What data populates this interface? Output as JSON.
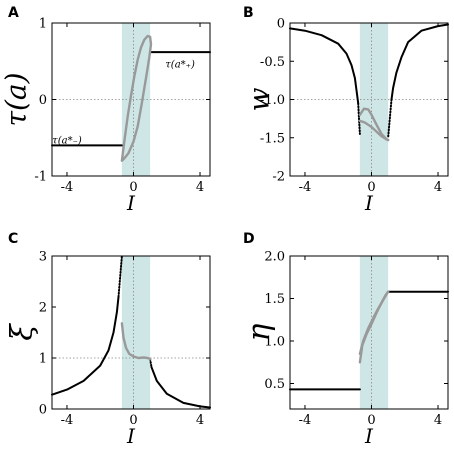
{
  "colors": {
    "shade": "#cfe6e7",
    "black_series": "#000000",
    "gray_series": "#999999",
    "gridline": "#888888"
  },
  "chart_data": [
    {
      "panel": "A",
      "type": "line",
      "xlabel": "I",
      "ylabel": "τ(a)",
      "xlim": [
        -4.9,
        4.6
      ],
      "ylim": [
        -1,
        1
      ],
      "xticks": [
        -4,
        0,
        4
      ],
      "xtick_labels": [
        "-4",
        "0",
        "4"
      ],
      "yticks": [
        -1,
        0,
        1
      ],
      "ytick_labels": [
        "-1",
        "0",
        "1"
      ],
      "shade_x": [
        -0.7,
        1.0
      ],
      "grid": "dotted lines at x=0 and y=0",
      "annotations": [
        {
          "text": "τ(a*₊)",
          "x": 2.8,
          "y": 0.47
        },
        {
          "text": "τ(a*₋)",
          "x": -4.0,
          "y": -0.52
        }
      ],
      "series": [
        {
          "color": "black",
          "style": "solid",
          "points": [
            [
              -4.9,
              -0.6
            ],
            [
              -0.7,
              -0.6
            ]
          ]
        },
        {
          "color": "black",
          "style": "solid",
          "points": [
            [
              1.0,
              0.62
            ],
            [
              4.6,
              0.62
            ]
          ]
        },
        {
          "color": "gray",
          "style": "solid",
          "points": [
            [
              -0.7,
              -0.8
            ],
            [
              -0.55,
              -0.55
            ],
            [
              -0.35,
              -0.22
            ],
            [
              -0.15,
              0.05
            ],
            [
              0.05,
              0.3
            ],
            [
              0.25,
              0.52
            ],
            [
              0.45,
              0.68
            ],
            [
              0.65,
              0.78
            ],
            [
              0.85,
              0.83
            ],
            [
              1.0,
              0.82
            ],
            [
              1.05,
              0.72
            ],
            [
              0.95,
              0.55
            ],
            [
              0.75,
              0.28
            ],
            [
              0.5,
              -0.05
            ],
            [
              0.25,
              -0.35
            ],
            [
              0.0,
              -0.55
            ],
            [
              -0.3,
              -0.7
            ],
            [
              -0.55,
              -0.77
            ],
            [
              -0.7,
              -0.8
            ]
          ]
        }
      ]
    },
    {
      "panel": "B",
      "type": "line",
      "xlabel": "I",
      "ylabel": "w",
      "xlim": [
        -4.9,
        4.6
      ],
      "ylim": [
        -2,
        0
      ],
      "xticks": [
        -4,
        0,
        4
      ],
      "xtick_labels": [
        "-4",
        "0",
        "4"
      ],
      "yticks": [
        0,
        -0.5,
        -1,
        -1.5,
        -2
      ],
      "ytick_labels": [
        "0",
        "-0.5",
        "-1.0",
        "-1.5",
        "-2"
      ],
      "shade_x": [
        -0.7,
        1.0
      ],
      "grid": "dotted lines at x=0 and y=-1",
      "series": [
        {
          "color": "black",
          "style": "solid",
          "points": [
            [
              -4.9,
              -0.07
            ],
            [
              -4.0,
              -0.1
            ],
            [
              -3.0,
              -0.16
            ],
            [
              -2.0,
              -0.27
            ],
            [
              -1.5,
              -0.4
            ],
            [
              -1.2,
              -0.55
            ],
            [
              -1.0,
              -0.72
            ],
            [
              -0.9,
              -0.88
            ],
            [
              -0.8,
              -1.05
            ]
          ]
        },
        {
          "color": "black",
          "style": "dotted",
          "points": [
            [
              -0.8,
              -1.05
            ],
            [
              -0.75,
              -1.25
            ],
            [
              -0.7,
              -1.45
            ]
          ]
        },
        {
          "color": "black",
          "style": "solid",
          "points": [
            [
              4.6,
              -0.02
            ],
            [
              4.0,
              -0.04
            ],
            [
              3.0,
              -0.1
            ],
            [
              2.2,
              -0.25
            ],
            [
              1.8,
              -0.45
            ],
            [
              1.5,
              -0.65
            ],
            [
              1.3,
              -0.85
            ],
            [
              1.2,
              -1.0
            ]
          ]
        },
        {
          "color": "black",
          "style": "dotted",
          "points": [
            [
              1.2,
              -1.0
            ],
            [
              1.1,
              -1.25
            ],
            [
              1.0,
              -1.5
            ]
          ]
        },
        {
          "color": "gray",
          "style": "solid",
          "points": [
            [
              -0.7,
              -1.28
            ],
            [
              -0.4,
              -1.3
            ],
            [
              -0.2,
              -1.33
            ],
            [
              0.0,
              -1.36
            ],
            [
              0.3,
              -1.42
            ],
            [
              0.6,
              -1.48
            ],
            [
              0.9,
              -1.52
            ],
            [
              1.0,
              -1.53
            ]
          ]
        },
        {
          "color": "gray",
          "style": "solid",
          "points": [
            [
              -0.7,
              -1.2
            ],
            [
              -0.45,
              -1.12
            ],
            [
              -0.2,
              -1.13
            ],
            [
              0.0,
              -1.2
            ],
            [
              0.3,
              -1.33
            ],
            [
              0.6,
              -1.45
            ],
            [
              0.9,
              -1.52
            ],
            [
              1.0,
              -1.53
            ]
          ]
        }
      ]
    },
    {
      "panel": "C",
      "type": "line",
      "xlabel": "I",
      "ylabel": "ξ",
      "xlim": [
        -4.9,
        4.6
      ],
      "ylim": [
        0,
        3
      ],
      "xticks": [
        -4,
        0,
        4
      ],
      "xtick_labels": [
        "-4",
        "0",
        "4"
      ],
      "yticks": [
        0,
        1,
        2,
        3
      ],
      "ytick_labels": [
        "0",
        "1",
        "2",
        "3"
      ],
      "shade_x": [
        -0.7,
        1.0
      ],
      "grid": "dotted lines at x=0 and y=1",
      "series": [
        {
          "color": "black",
          "style": "solid",
          "points": [
            [
              -4.9,
              0.28
            ],
            [
              -4.0,
              0.38
            ],
            [
              -3.0,
              0.55
            ],
            [
              -2.0,
              0.85
            ],
            [
              -1.5,
              1.15
            ],
            [
              -1.2,
              1.5
            ],
            [
              -1.0,
              1.9
            ],
            [
              -0.9,
              2.2
            ]
          ]
        },
        {
          "color": "black",
          "style": "dotted",
          "points": [
            [
              -0.9,
              2.2
            ],
            [
              -0.8,
              2.6
            ],
            [
              -0.7,
              3.0
            ]
          ]
        },
        {
          "color": "black",
          "style": "dotted",
          "points": [
            [
              1.0,
              0.98
            ],
            [
              1.08,
              0.82
            ]
          ]
        },
        {
          "color": "black",
          "style": "solid",
          "points": [
            [
              1.08,
              0.82
            ],
            [
              1.4,
              0.55
            ],
            [
              2.0,
              0.3
            ],
            [
              3.0,
              0.12
            ],
            [
              4.0,
              0.05
            ],
            [
              4.6,
              0.03
            ]
          ]
        },
        {
          "color": "gray",
          "style": "solid",
          "points": [
            [
              -0.7,
              1.68
            ],
            [
              -0.6,
              1.4
            ],
            [
              -0.45,
              1.2
            ],
            [
              -0.25,
              1.08
            ],
            [
              0.0,
              1.03
            ],
            [
              0.3,
              1.0
            ],
            [
              0.6,
              1.01
            ],
            [
              0.85,
              1.0
            ],
            [
              1.0,
              0.98
            ]
          ]
        }
      ]
    },
    {
      "panel": "D",
      "type": "line",
      "xlabel": "I",
      "ylabel": "η",
      "xlim": [
        -4.9,
        4.6
      ],
      "ylim": [
        0.2,
        2.0
      ],
      "xticks": [
        -4,
        0,
        4
      ],
      "xtick_labels": [
        "-4",
        "0",
        "4"
      ],
      "yticks": [
        0.5,
        1.0,
        1.5,
        2.0
      ],
      "ytick_labels": [
        "0.5",
        "1.0",
        "1.5",
        "2.0"
      ],
      "shade_x": [
        -0.7,
        1.0
      ],
      "grid": "dotted line at x=0",
      "series": [
        {
          "color": "black",
          "style": "solid",
          "points": [
            [
              -4.9,
              0.43
            ],
            [
              -0.7,
              0.43
            ]
          ]
        },
        {
          "color": "black",
          "style": "solid",
          "points": [
            [
              1.0,
              1.58
            ],
            [
              4.6,
              1.58
            ]
          ]
        },
        {
          "color": "gray",
          "style": "solid",
          "points": [
            [
              -0.7,
              0.75
            ],
            [
              -0.55,
              0.95
            ],
            [
              -0.3,
              1.08
            ],
            [
              0.0,
              1.2
            ],
            [
              0.3,
              1.33
            ],
            [
              0.6,
              1.45
            ],
            [
              0.85,
              1.54
            ],
            [
              1.0,
              1.58
            ]
          ]
        },
        {
          "color": "gray",
          "style": "solid",
          "points": [
            [
              -0.7,
              0.85
            ],
            [
              -0.5,
              1.0
            ],
            [
              -0.2,
              1.15
            ],
            [
              0.1,
              1.27
            ],
            [
              0.4,
              1.38
            ],
            [
              0.7,
              1.48
            ],
            [
              1.0,
              1.58
            ]
          ]
        }
      ]
    }
  ]
}
